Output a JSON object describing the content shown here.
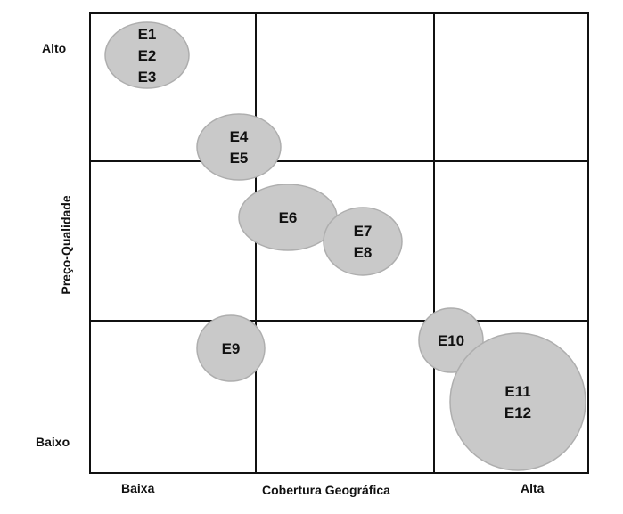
{
  "axes": {
    "y_title": "Preço-Qualidade",
    "y_high": "Alto",
    "y_low": "Baixo",
    "x_title": "Cobertura Geográfica",
    "x_low": "Baixa",
    "x_high": "Alta"
  },
  "groups": [
    {
      "labels": [
        "E1",
        "E2",
        "E3"
      ]
    },
    {
      "labels": [
        "E4",
        "E5"
      ]
    },
    {
      "labels": [
        "E6"
      ]
    },
    {
      "labels": [
        "E7",
        "E8"
      ]
    },
    {
      "labels": [
        "E9"
      ]
    },
    {
      "labels": [
        "E10"
      ]
    },
    {
      "labels": [
        "E11",
        "E12"
      ]
    }
  ],
  "colors": {
    "bubble_fill": "#c9c9c9",
    "bubble_stroke": "#aeaeae",
    "grid": "#111111"
  }
}
